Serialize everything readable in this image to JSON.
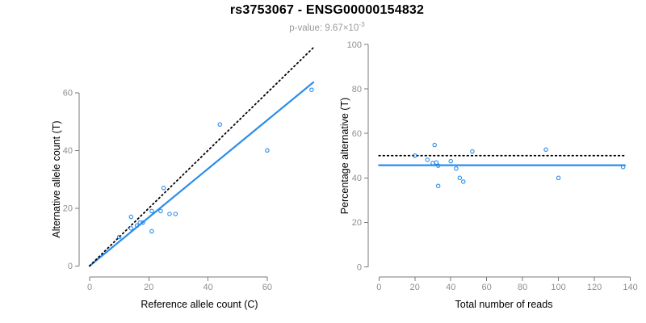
{
  "header": {
    "title": "rs3753067 - ENSG00000154832",
    "subtitle_text": "p-value: 9.67×10",
    "subtitle_exponent": "-3"
  },
  "colors": {
    "accent_blue": "#2b8ceb",
    "identity_black": "#000000",
    "axis_line": "#7a7a7a",
    "tick_label": "#8e8e8e",
    "axis_label": "#000000",
    "title": "#000000",
    "subtitle": "#9b9b9b",
    "background": "#ffffff"
  },
  "chart_data": [
    {
      "type": "scatter",
      "panel": "allele-counts",
      "xlabel": "Reference allele count (C)",
      "ylabel": "Alternative allele count (T)",
      "xlim": [
        0,
        77
      ],
      "ylim": [
        0,
        77
      ],
      "xticks": [
        0,
        20,
        40,
        60
      ],
      "yticks": [
        0,
        20,
        40,
        60
      ],
      "grid": false,
      "legend": "none",
      "marker": "open-circle",
      "points": [
        [
          10,
          10
        ],
        [
          14,
          13
        ],
        [
          14,
          17
        ],
        [
          16,
          14
        ],
        [
          17,
          15
        ],
        [
          18,
          15
        ],
        [
          21,
          12
        ],
        [
          21,
          19
        ],
        [
          24,
          19
        ],
        [
          25,
          27
        ],
        [
          27,
          18
        ],
        [
          29,
          18
        ],
        [
          44,
          49
        ],
        [
          60,
          40
        ],
        [
          75,
          61
        ]
      ],
      "lines": [
        {
          "name": "regression-line",
          "style": "solid",
          "color": "#2b8ceb",
          "from": [
            0,
            0
          ],
          "to": [
            75.6,
            63.6
          ]
        },
        {
          "name": "identity-line",
          "style": "dotted",
          "color": "#000000",
          "from": [
            0,
            0
          ],
          "to": [
            76,
            76
          ]
        }
      ]
    },
    {
      "type": "scatter",
      "panel": "percentage-vs-coverage",
      "xlabel": "Total number of reads",
      "ylabel": "Percentage alternative (T)",
      "xlim": [
        0,
        143
      ],
      "ylim": [
        0,
        100
      ],
      "xticks": [
        0,
        20,
        40,
        60,
        80,
        100,
        120,
        140
      ],
      "yticks": [
        0,
        20,
        40,
        60,
        80,
        100
      ],
      "grid": false,
      "legend": "none",
      "marker": "open-circle",
      "points": [
        [
          20,
          50.0
        ],
        [
          27,
          48.1
        ],
        [
          30,
          46.7
        ],
        [
          31,
          54.8
        ],
        [
          32,
          46.9
        ],
        [
          33,
          45.5
        ],
        [
          33,
          36.4
        ],
        [
          40,
          47.5
        ],
        [
          43,
          44.2
        ],
        [
          45,
          40.0
        ],
        [
          47,
          38.3
        ],
        [
          52,
          51.9
        ],
        [
          93,
          52.7
        ],
        [
          100,
          40.0
        ],
        [
          136,
          44.9
        ]
      ],
      "lines": [
        {
          "name": "fitted-percentage-line",
          "style": "solid",
          "color": "#2b8ceb",
          "from": [
            0,
            45.7
          ],
          "to": [
            137,
            45.7
          ]
        },
        {
          "name": "null-50-percent-line",
          "style": "dotted",
          "color": "#000000",
          "from": [
            0,
            50
          ],
          "to": [
            137,
            50
          ]
        }
      ]
    }
  ]
}
